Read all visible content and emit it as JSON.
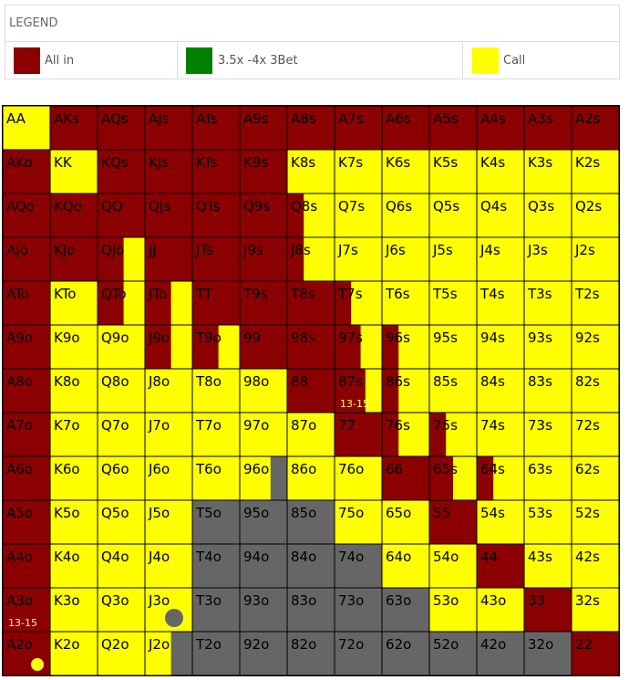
{
  "legend": {
    "title": "LEGEND",
    "items": [
      {
        "label": "All in",
        "color": "#8b0000"
      },
      {
        "label": "3.5x -4x 3Bet",
        "color": "#008000"
      },
      {
        "label": "Call",
        "color": "#ffff00"
      }
    ]
  },
  "chart_data": {
    "type": "table",
    "rows": [
      "A",
      "K",
      "Q",
      "J",
      "T",
      "9",
      "8",
      "7",
      "6",
      "5",
      "4",
      "3",
      "2"
    ],
    "columns": [
      "A",
      "K",
      "Q",
      "J",
      "T",
      "9",
      "8",
      "7",
      "6",
      "5",
      "4",
      "3",
      "2"
    ],
    "colors": {
      "allin": "#8b0000",
      "call": "#ffff00",
      "fold": "#666666"
    },
    "cells": [
      [
        {
          "label": "AA",
          "action": "call"
        },
        {
          "label": "AKs",
          "action": "allin"
        },
        {
          "label": "AQs",
          "action": "allin"
        },
        {
          "label": "AJs",
          "action": "allin"
        },
        {
          "label": "ATs",
          "action": "allin"
        },
        {
          "label": "A9s",
          "action": "allin"
        },
        {
          "label": "A8s",
          "action": "allin"
        },
        {
          "label": "A7s",
          "action": "allin"
        },
        {
          "label": "A6s",
          "action": "allin"
        },
        {
          "label": "A5s",
          "action": "allin"
        },
        {
          "label": "A4s",
          "action": "allin"
        },
        {
          "label": "A3s",
          "action": "allin"
        },
        {
          "label": "A2s",
          "action": "allin"
        }
      ],
      [
        {
          "label": "AKo",
          "action": "allin"
        },
        {
          "label": "KK",
          "action": "call"
        },
        {
          "label": "KQs",
          "action": "allin"
        },
        {
          "label": "KJs",
          "action": "allin"
        },
        {
          "label": "KTs",
          "action": "allin"
        },
        {
          "label": "K9s",
          "action": "allin"
        },
        {
          "label": "K8s",
          "action": "call"
        },
        {
          "label": "K7s",
          "action": "call"
        },
        {
          "label": "K6s",
          "action": "call"
        },
        {
          "label": "K5s",
          "action": "call"
        },
        {
          "label": "K4s",
          "action": "call"
        },
        {
          "label": "K3s",
          "action": "call"
        },
        {
          "label": "K2s",
          "action": "call"
        }
      ],
      [
        {
          "label": "AQo",
          "action": "allin"
        },
        {
          "label": "KQo",
          "action": "allin"
        },
        {
          "label": "QQ",
          "action": "allin"
        },
        {
          "label": "QJs",
          "action": "allin"
        },
        {
          "label": "QTs",
          "action": "allin"
        },
        {
          "label": "Q9s",
          "action": "allin"
        },
        {
          "label": "Q8s",
          "action": "call",
          "allin_fraction": 0.35
        },
        {
          "label": "Q7s",
          "action": "call"
        },
        {
          "label": "Q6s",
          "action": "call"
        },
        {
          "label": "Q5s",
          "action": "call"
        },
        {
          "label": "Q4s",
          "action": "call"
        },
        {
          "label": "Q3s",
          "action": "call"
        },
        {
          "label": "Q2s",
          "action": "call"
        }
      ],
      [
        {
          "label": "AJo",
          "action": "allin"
        },
        {
          "label": "KJo",
          "action": "allin"
        },
        {
          "label": "QJo",
          "action": "allin",
          "call_fraction": 0.45
        },
        {
          "label": "JJ",
          "action": "allin"
        },
        {
          "label": "JTs",
          "action": "allin"
        },
        {
          "label": "J9s",
          "action": "allin"
        },
        {
          "label": "J8s",
          "action": "call",
          "allin_fraction": 0.35
        },
        {
          "label": "J7s",
          "action": "call"
        },
        {
          "label": "J6s",
          "action": "call"
        },
        {
          "label": "J5s",
          "action": "call"
        },
        {
          "label": "J4s",
          "action": "call"
        },
        {
          "label": "J3s",
          "action": "call"
        },
        {
          "label": "J2s",
          "action": "call"
        }
      ],
      [
        {
          "label": "ATo",
          "action": "allin"
        },
        {
          "label": "KTo",
          "action": "call"
        },
        {
          "label": "QTo",
          "action": "allin",
          "call_fraction": 0.45
        },
        {
          "label": "JTo",
          "action": "allin",
          "call_fraction": 0.45
        },
        {
          "label": "TT",
          "action": "allin"
        },
        {
          "label": "T9s",
          "action": "allin"
        },
        {
          "label": "T8s",
          "action": "allin"
        },
        {
          "label": "T7s",
          "action": "call",
          "allin_fraction": 0.35
        },
        {
          "label": "T6s",
          "action": "call"
        },
        {
          "label": "T5s",
          "action": "call"
        },
        {
          "label": "T4s",
          "action": "call"
        },
        {
          "label": "T3s",
          "action": "call"
        },
        {
          "label": "T2s",
          "action": "call"
        }
      ],
      [
        {
          "label": "A9o",
          "action": "allin"
        },
        {
          "label": "K9o",
          "action": "call"
        },
        {
          "label": "Q9o",
          "action": "call"
        },
        {
          "label": "J9o",
          "action": "allin",
          "call_fraction": 0.45
        },
        {
          "label": "T9o",
          "action": "allin",
          "call_fraction": 0.45
        },
        {
          "label": "99",
          "action": "allin"
        },
        {
          "label": "98s",
          "action": "allin"
        },
        {
          "label": "97s",
          "action": "allin",
          "call_fraction": 0.45
        },
        {
          "label": "96s",
          "action": "call",
          "allin_fraction": 0.35
        },
        {
          "label": "95s",
          "action": "call"
        },
        {
          "label": "94s",
          "action": "call"
        },
        {
          "label": "93s",
          "action": "call"
        },
        {
          "label": "92s",
          "action": "call"
        }
      ],
      [
        {
          "label": "A8o",
          "action": "allin"
        },
        {
          "label": "K8o",
          "action": "call"
        },
        {
          "label": "Q8o",
          "action": "call"
        },
        {
          "label": "J8o",
          "action": "call"
        },
        {
          "label": "T8o",
          "action": "call"
        },
        {
          "label": "98o",
          "action": "call"
        },
        {
          "label": "88",
          "action": "allin"
        },
        {
          "label": "87s",
          "action": "allin",
          "call_fraction": 0.35,
          "note": "13-15"
        },
        {
          "label": "86s",
          "action": "call",
          "allin_fraction": 0.35
        },
        {
          "label": "85s",
          "action": "call"
        },
        {
          "label": "84s",
          "action": "call"
        },
        {
          "label": "83s",
          "action": "call"
        },
        {
          "label": "82s",
          "action": "call"
        }
      ],
      [
        {
          "label": "A7o",
          "action": "allin"
        },
        {
          "label": "K7o",
          "action": "call"
        },
        {
          "label": "Q7o",
          "action": "call"
        },
        {
          "label": "J7o",
          "action": "call"
        },
        {
          "label": "T7o",
          "action": "call"
        },
        {
          "label": "97o",
          "action": "call"
        },
        {
          "label": "87o",
          "action": "call"
        },
        {
          "label": "77",
          "action": "allin"
        },
        {
          "label": "76s",
          "action": "call",
          "allin_fraction": 0.35
        },
        {
          "label": "75s",
          "action": "call",
          "allin_fraction": 0.35
        },
        {
          "label": "74s",
          "action": "call"
        },
        {
          "label": "73s",
          "action": "call"
        },
        {
          "label": "72s",
          "action": "call"
        }
      ],
      [
        {
          "label": "A6o",
          "action": "allin"
        },
        {
          "label": "K6o",
          "action": "call"
        },
        {
          "label": "Q6o",
          "action": "call"
        },
        {
          "label": "J6o",
          "action": "call"
        },
        {
          "label": "T6o",
          "action": "call"
        },
        {
          "label": "96o",
          "action": "call",
          "fold_fraction": 0.35
        },
        {
          "label": "86o",
          "action": "call"
        },
        {
          "label": "76o",
          "action": "call"
        },
        {
          "label": "66",
          "action": "allin"
        },
        {
          "label": "65s",
          "action": "allin",
          "call_fraction": 0.5
        },
        {
          "label": "64s",
          "action": "call",
          "allin_fraction": 0.35
        },
        {
          "label": "63s",
          "action": "call"
        },
        {
          "label": "62s",
          "action": "call"
        }
      ],
      [
        {
          "label": "A5o",
          "action": "allin"
        },
        {
          "label": "K5o",
          "action": "call"
        },
        {
          "label": "Q5o",
          "action": "call"
        },
        {
          "label": "J5o",
          "action": "call"
        },
        {
          "label": "T5o",
          "action": "fold"
        },
        {
          "label": "95o",
          "action": "fold"
        },
        {
          "label": "85o",
          "action": "fold"
        },
        {
          "label": "75o",
          "action": "call"
        },
        {
          "label": "65o",
          "action": "call"
        },
        {
          "label": "55",
          "action": "allin"
        },
        {
          "label": "54s",
          "action": "call"
        },
        {
          "label": "53s",
          "action": "call"
        },
        {
          "label": "52s",
          "action": "call"
        }
      ],
      [
        {
          "label": "A4o",
          "action": "allin"
        },
        {
          "label": "K4o",
          "action": "call"
        },
        {
          "label": "Q4o",
          "action": "call"
        },
        {
          "label": "J4o",
          "action": "call"
        },
        {
          "label": "T4o",
          "action": "fold"
        },
        {
          "label": "94o",
          "action": "fold"
        },
        {
          "label": "84o",
          "action": "fold"
        },
        {
          "label": "74o",
          "action": "fold"
        },
        {
          "label": "64o",
          "action": "call"
        },
        {
          "label": "54o",
          "action": "call"
        },
        {
          "label": "44",
          "action": "allin"
        },
        {
          "label": "43s",
          "action": "call"
        },
        {
          "label": "42s",
          "action": "call"
        }
      ],
      [
        {
          "label": "A3o",
          "action": "allin",
          "note": "13-15"
        },
        {
          "label": "K3o",
          "action": "call"
        },
        {
          "label": "Q3o",
          "action": "call"
        },
        {
          "label": "J3o",
          "action": "call",
          "dot": "fold"
        },
        {
          "label": "T3o",
          "action": "fold"
        },
        {
          "label": "93o",
          "action": "fold"
        },
        {
          "label": "83o",
          "action": "fold"
        },
        {
          "label": "73o",
          "action": "fold"
        },
        {
          "label": "63o",
          "action": "fold"
        },
        {
          "label": "53o",
          "action": "call"
        },
        {
          "label": "43o",
          "action": "call"
        },
        {
          "label": "33",
          "action": "allin"
        },
        {
          "label": "32s",
          "action": "call"
        }
      ],
      [
        {
          "label": "A2o",
          "action": "allin",
          "dot": "call"
        },
        {
          "label": "K2o",
          "action": "call"
        },
        {
          "label": "Q2o",
          "action": "call"
        },
        {
          "label": "J2o",
          "action": "call",
          "fold_fraction": 0.45
        },
        {
          "label": "T2o",
          "action": "fold"
        },
        {
          "label": "92o",
          "action": "fold"
        },
        {
          "label": "82o",
          "action": "fold"
        },
        {
          "label": "72o",
          "action": "fold"
        },
        {
          "label": "62o",
          "action": "fold"
        },
        {
          "label": "52o",
          "action": "fold"
        },
        {
          "label": "42o",
          "action": "fold"
        },
        {
          "label": "32o",
          "action": "fold"
        },
        {
          "label": "22",
          "action": "allin"
        }
      ]
    ]
  }
}
